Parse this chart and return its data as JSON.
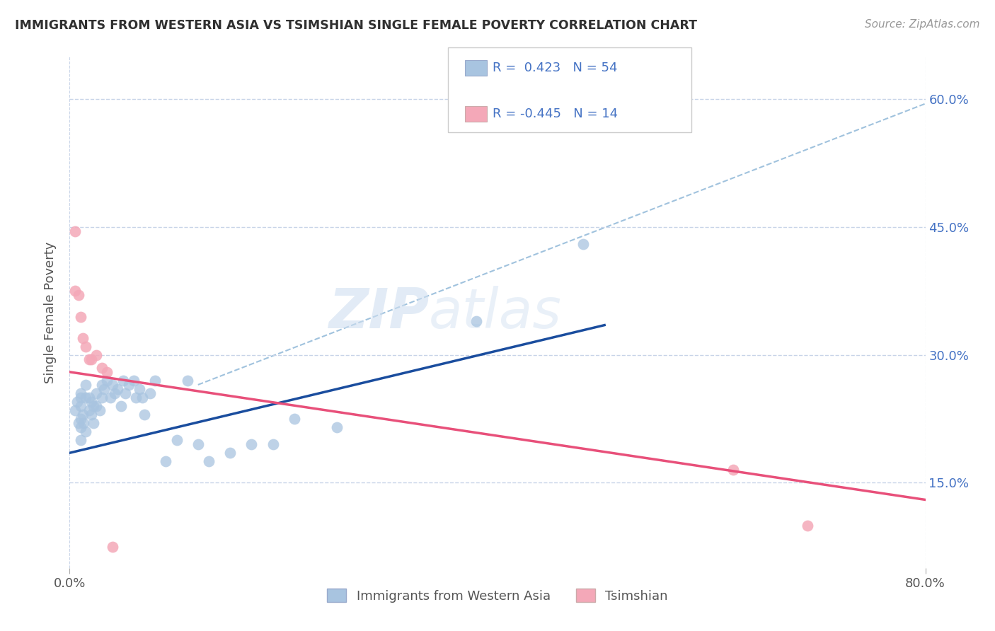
{
  "title": "IMMIGRANTS FROM WESTERN ASIA VS TSIMSHIAN SINGLE FEMALE POVERTY CORRELATION CHART",
  "source": "Source: ZipAtlas.com",
  "ylabel": "Single Female Poverty",
  "legend_labels": [
    "Immigrants from Western Asia",
    "Tsimshian"
  ],
  "r_blue": 0.423,
  "n_blue": 54,
  "r_pink": -0.445,
  "n_pink": 14,
  "xlim": [
    0.0,
    0.8
  ],
  "ylim": [
    0.05,
    0.65
  ],
  "ytick_vals": [
    0.15,
    0.3,
    0.45,
    0.6
  ],
  "ytick_labels": [
    "15.0%",
    "30.0%",
    "45.0%",
    "60.0%"
  ],
  "background_color": "#ffffff",
  "blue_scatter_color": "#a8c4e0",
  "pink_scatter_color": "#f4a8b8",
  "blue_line_color": "#1a4d9e",
  "pink_line_color": "#e8507a",
  "dashed_line_color": "#90b8d8",
  "grid_color": "#c8d4e8",
  "title_color": "#303030",
  "axis_text_color": "#4472c4",
  "watermark_color": "#d0dff0",
  "blue_points_x": [
    0.005,
    0.007,
    0.008,
    0.01,
    0.01,
    0.01,
    0.01,
    0.01,
    0.01,
    0.012,
    0.013,
    0.015,
    0.015,
    0.015,
    0.018,
    0.018,
    0.02,
    0.02,
    0.022,
    0.022,
    0.025,
    0.025,
    0.028,
    0.03,
    0.03,
    0.032,
    0.035,
    0.038,
    0.04,
    0.042,
    0.045,
    0.048,
    0.05,
    0.052,
    0.055,
    0.06,
    0.062,
    0.065,
    0.068,
    0.07,
    0.075,
    0.08,
    0.09,
    0.1,
    0.11,
    0.12,
    0.13,
    0.15,
    0.17,
    0.19,
    0.21,
    0.25,
    0.38,
    0.48
  ],
  "blue_points_y": [
    0.235,
    0.245,
    0.22,
    0.255,
    0.25,
    0.24,
    0.225,
    0.215,
    0.2,
    0.23,
    0.22,
    0.265,
    0.25,
    0.21,
    0.25,
    0.235,
    0.245,
    0.23,
    0.24,
    0.22,
    0.255,
    0.24,
    0.235,
    0.265,
    0.25,
    0.26,
    0.27,
    0.25,
    0.265,
    0.255,
    0.26,
    0.24,
    0.27,
    0.255,
    0.265,
    0.27,
    0.25,
    0.26,
    0.25,
    0.23,
    0.255,
    0.27,
    0.175,
    0.2,
    0.27,
    0.195,
    0.175,
    0.185,
    0.195,
    0.195,
    0.225,
    0.215,
    0.34,
    0.43
  ],
  "pink_points_x": [
    0.005,
    0.005,
    0.008,
    0.01,
    0.012,
    0.015,
    0.018,
    0.02,
    0.025,
    0.03,
    0.035,
    0.04,
    0.62,
    0.69
  ],
  "pink_points_y": [
    0.445,
    0.375,
    0.37,
    0.345,
    0.32,
    0.31,
    0.295,
    0.295,
    0.3,
    0.285,
    0.28,
    0.075,
    0.165,
    0.1
  ],
  "blue_line_x": [
    0.0,
    0.5
  ],
  "blue_line_y": [
    0.185,
    0.335
  ],
  "pink_line_x": [
    0.0,
    0.8
  ],
  "pink_line_y": [
    0.28,
    0.13
  ],
  "dashed_line_x": [
    0.12,
    0.8
  ],
  "dashed_line_y": [
    0.265,
    0.595
  ]
}
